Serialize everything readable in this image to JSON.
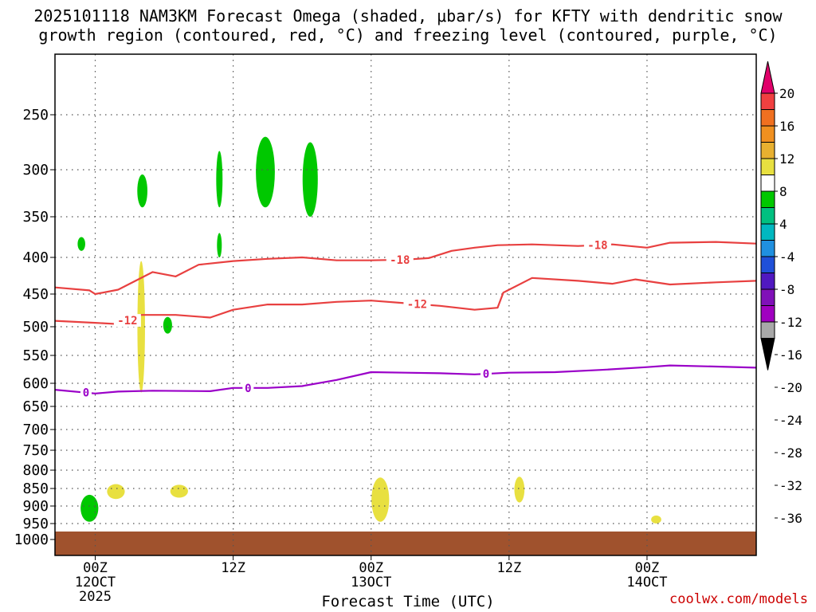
{
  "chart_data": {
    "type": "contour",
    "title_line1": "2025101118 NAM3KM Forecast Omega (shaded, μbar/s) for KFTY with dendritic snow",
    "title_line2": "growth region (contoured, red, °C) and freezing level (contoured, purple, °C)",
    "xlabel": "Forecast Time (UTC)",
    "watermark": "coolwx.com/models",
    "x_range_hours": [
      -3.5,
      57.5
    ],
    "x_ticks": [
      {
        "hour": 0,
        "label": "00Z",
        "sub": "12OCT",
        "year": "2025"
      },
      {
        "hour": 12,
        "label": "12Z",
        "sub": "",
        "year": ""
      },
      {
        "hour": 24,
        "label": "00Z",
        "sub": "13OCT",
        "year": ""
      },
      {
        "hour": 36,
        "label": "12Z",
        "sub": "",
        "year": ""
      },
      {
        "hour": 48,
        "label": "00Z",
        "sub": "14OCT",
        "year": ""
      }
    ],
    "y_ticks": [
      "250",
      "300",
      "350",
      "400",
      "450",
      "500",
      "550",
      "600",
      "650",
      "700",
      "750",
      "800",
      "850",
      "900",
      "950",
      "1000"
    ],
    "y_tick_values": [
      250,
      300,
      350,
      400,
      450,
      500,
      550,
      600,
      650,
      700,
      750,
      800,
      850,
      900,
      950,
      1000
    ],
    "colorbar": {
      "labels": [
        "20",
        "16",
        "12",
        "8",
        "4",
        "-4",
        "-8",
        "-12",
        "-16",
        "-20",
        "-24",
        "-28",
        "-32",
        "-36"
      ],
      "colors": [
        "#e0006a",
        "#f04040",
        "#f07020",
        "#f09020",
        "#e8b030",
        "#e8e040",
        "#ffffff",
        "#00c800",
        "#00c080",
        "#00b8c0",
        "#2090e0",
        "#2050d8",
        "#5018c0",
        "#8010b8",
        "#a000c0",
        "#a8a8a8",
        "#000000"
      ]
    },
    "contour_labels": {
      "minus18": "-18",
      "minus12": "-12",
      "freezing": "0"
    },
    "series": [
      {
        "name": "-18C isotherm",
        "color": "#e84040",
        "points": [
          [
            -3.5,
            441
          ],
          [
            -0.5,
            445
          ],
          [
            0,
            450
          ],
          [
            2,
            444
          ],
          [
            5,
            420
          ],
          [
            7,
            426
          ],
          [
            9,
            410
          ],
          [
            12,
            405
          ],
          [
            15,
            402
          ],
          [
            18,
            400
          ],
          [
            21,
            404
          ],
          [
            24,
            404
          ],
          [
            27,
            403
          ],
          [
            29,
            401
          ],
          [
            31,
            392
          ],
          [
            33,
            388
          ],
          [
            35,
            385
          ],
          [
            38,
            384
          ],
          [
            42,
            386
          ],
          [
            45,
            384
          ],
          [
            48,
            388
          ],
          [
            50,
            382
          ],
          [
            54,
            381
          ],
          [
            57.5,
            383
          ]
        ]
      },
      {
        "name": "-12C isotherm",
        "color": "#e84040",
        "points": [
          [
            -3.5,
            491
          ],
          [
            0,
            494
          ],
          [
            2,
            496
          ],
          [
            4,
            482
          ],
          [
            7,
            482
          ],
          [
            10,
            486
          ],
          [
            12,
            474
          ],
          [
            15,
            466
          ],
          [
            18,
            466
          ],
          [
            21,
            462
          ],
          [
            24,
            460
          ],
          [
            27,
            464
          ],
          [
            30,
            468
          ],
          [
            33,
            474
          ],
          [
            35,
            471
          ],
          [
            35.5,
            448
          ],
          [
            38,
            428
          ],
          [
            42,
            432
          ],
          [
            45,
            436
          ],
          [
            47,
            430
          ],
          [
            50,
            437
          ],
          [
            54,
            434
          ],
          [
            57.5,
            432
          ]
        ]
      },
      {
        "name": "0C freezing level",
        "color": "#9a00c8",
        "points": [
          [
            -3.5,
            614
          ],
          [
            0,
            622
          ],
          [
            2,
            618
          ],
          [
            5,
            616
          ],
          [
            10,
            617
          ],
          [
            12,
            610
          ],
          [
            15,
            610
          ],
          [
            18,
            606
          ],
          [
            21,
            594
          ],
          [
            24,
            580
          ],
          [
            27,
            581
          ],
          [
            30,
            582
          ],
          [
            33,
            584
          ],
          [
            36,
            581
          ],
          [
            40,
            580
          ],
          [
            44,
            576
          ],
          [
            48,
            571
          ],
          [
            50,
            568
          ],
          [
            54,
            570
          ],
          [
            57.5,
            572
          ]
        ]
      }
    ],
    "omega_blobs": [
      {
        "color": "#00c800",
        "hour": -1.2,
        "p0": 375,
        "p1": 392,
        "w": 0.6
      },
      {
        "color": "#00c800",
        "hour": 4.1,
        "p0": 305,
        "p1": 340,
        "w": 0.8
      },
      {
        "color": "#00c800",
        "hour": 6.3,
        "p0": 485,
        "p1": 512,
        "w": 0.7
      },
      {
        "color": "#00c800",
        "hour": 10.8,
        "p0": 283,
        "p1": 340,
        "w": 0.5
      },
      {
        "color": "#00c800",
        "hour": 10.8,
        "p0": 370,
        "p1": 400,
        "w": 0.3
      },
      {
        "color": "#00c800",
        "hour": 14.8,
        "p0": 270,
        "p1": 340,
        "w": 1.5
      },
      {
        "color": "#00c800",
        "hour": 18.7,
        "p0": 275,
        "p1": 350,
        "w": 1.2
      },
      {
        "color": "#00c800",
        "hour": -0.5,
        "p0": 868,
        "p1": 945,
        "w": 1.4
      },
      {
        "color": "#e8e040",
        "hour": 4.0,
        "p0": 405,
        "p1": 620,
        "w": 0.6
      },
      {
        "color": "#e8e040",
        "hour": 1.8,
        "p0": 838,
        "p1": 880,
        "w": 1.4
      },
      {
        "color": "#e8e040",
        "hour": 7.3,
        "p0": 840,
        "p1": 876,
        "w": 1.4
      },
      {
        "color": "#e8e040",
        "hour": 24.8,
        "p0": 820,
        "p1": 945,
        "w": 1.4
      },
      {
        "color": "#e8e040",
        "hour": 36.9,
        "p0": 818,
        "p1": 890,
        "w": 0.8
      },
      {
        "color": "#e8e040",
        "hour": 48.8,
        "p0": 927,
        "p1": 950,
        "w": 0.8
      }
    ],
    "surface": {
      "color": "#a0522d",
      "p_top": 975
    }
  }
}
